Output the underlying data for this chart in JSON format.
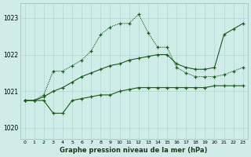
{
  "background_color": "#d0ece8",
  "grid_color": "#b0d8d0",
  "line_color": "#1a5c1a",
  "xlabel": "Graphe pression niveau de la mer (hPa)",
  "ylim": [
    1019.7,
    1023.4
  ],
  "yticks": [
    1020,
    1021,
    1022,
    1023
  ],
  "xticks": [
    0,
    1,
    2,
    3,
    4,
    5,
    6,
    7,
    8,
    9,
    10,
    11,
    12,
    13,
    14,
    15,
    16,
    17,
    18,
    19,
    20,
    21,
    22,
    23
  ],
  "line_dotted": {
    "x": [
      0,
      1,
      2,
      3,
      4,
      5,
      6,
      7,
      8,
      9,
      10,
      11,
      12,
      13,
      14,
      15,
      16,
      17,
      18,
      19,
      20,
      21,
      22,
      23
    ],
    "y": [
      1020.75,
      1020.75,
      1020.9,
      1021.55,
      1021.55,
      1021.7,
      1021.85,
      1022.1,
      1022.55,
      1022.75,
      1022.85,
      1022.85,
      1023.1,
      1022.6,
      1022.2,
      1022.2,
      1021.65,
      1021.5,
      1021.4,
      1021.4,
      1021.4,
      1021.45,
      1021.55,
      1021.65
    ],
    "style": ":"
  },
  "line_flat": {
    "x": [
      0,
      1,
      2,
      3,
      4,
      5,
      6,
      7,
      8,
      9,
      10,
      11,
      12,
      13,
      14,
      15,
      16,
      17,
      18,
      19,
      20,
      21,
      22,
      23
    ],
    "y": [
      1020.75,
      1020.75,
      1020.75,
      1020.4,
      1020.4,
      1020.75,
      1020.8,
      1020.85,
      1020.9,
      1020.9,
      1021.0,
      1021.05,
      1021.1,
      1021.1,
      1021.1,
      1021.1,
      1021.1,
      1021.1,
      1021.1,
      1021.1,
      1021.15,
      1021.15,
      1021.15,
      1021.15
    ],
    "style": "-"
  },
  "line_diagonal": {
    "x": [
      0,
      1,
      2,
      3,
      4,
      5,
      6,
      7,
      8,
      9,
      10,
      11,
      12,
      13,
      14,
      15,
      16,
      17,
      18,
      19,
      20,
      21,
      22,
      23
    ],
    "y": [
      1020.75,
      1020.75,
      1020.85,
      1021.0,
      1021.1,
      1021.25,
      1021.4,
      1021.5,
      1021.6,
      1021.7,
      1021.75,
      1021.85,
      1021.9,
      1021.95,
      1022.0,
      1022.0,
      1021.75,
      1021.65,
      1021.6,
      1021.6,
      1021.65,
      1022.55,
      1022.7,
      1022.85
    ],
    "style": "-"
  }
}
